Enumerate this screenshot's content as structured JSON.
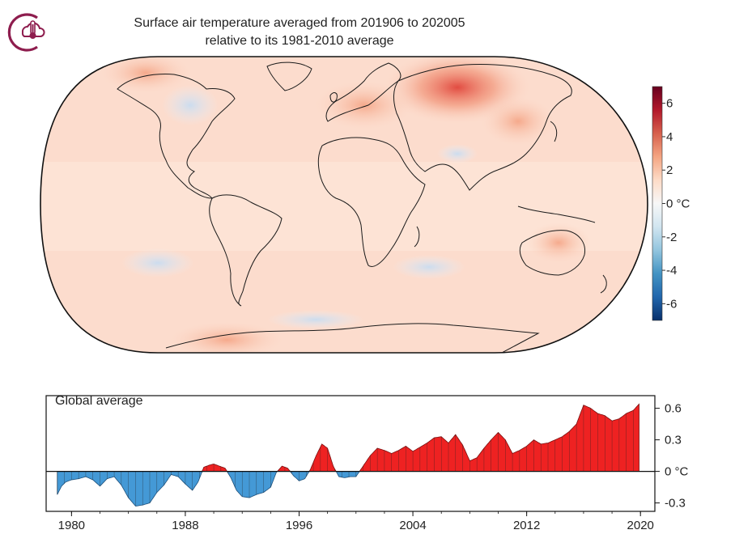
{
  "logo": {
    "icon": "thermometer-cloud-icon",
    "color": "#8e1d4e"
  },
  "title": {
    "line1": "Surface air temperature averaged from 201906 to 202005",
    "line2": "relative to its 1981-2010 average"
  },
  "colorbar": {
    "ticks": [
      "6",
      "4",
      "2",
      "0",
      "-2",
      "-4",
      "-6"
    ],
    "unit": "°C",
    "colors": [
      "#08306b",
      "#2166ac",
      "#4393c3",
      "#92c5de",
      "#d1e5f0",
      "#f7f7f7",
      "#fddbc7",
      "#f4a582",
      "#d6604d",
      "#b2182b",
      "#67001f"
    ]
  },
  "chart_data": [
    {
      "type": "heatmap",
      "description": "Global map of surface air temperature anomaly (°C), Robinson-style projection",
      "range": [
        -7,
        7
      ],
      "unit": "°C",
      "features": [
        {
          "region": "Northern Siberia",
          "anomaly": 5
        },
        {
          "region": "Northern Europe / Scandinavia",
          "anomaly": 2
        },
        {
          "region": "Alaska",
          "anomaly": 2.5
        },
        {
          "region": "Hudson Bay / Northern Canada",
          "anomaly": -1.5
        },
        {
          "region": "Antarctic Peninsula",
          "anomaly": 2
        },
        {
          "region": "Southern Ocean",
          "anomaly": -0.8
        }
      ]
    },
    {
      "type": "area",
      "title": "Global average",
      "x_ticks": [
        "1980",
        "1988",
        "1996",
        "2004",
        "2012",
        "2020"
      ],
      "y_ticks": [
        "0.6",
        "0.3",
        "0 °C",
        "-0.3"
      ],
      "xlim": [
        1978.5,
        2020.5
      ],
      "ylim": [
        -0.38,
        0.72
      ],
      "x": [
        1979.0,
        1979.3,
        1979.6,
        1980.0,
        1980.5,
        1981.0,
        1981.5,
        1982.0,
        1982.5,
        1983.0,
        1983.5,
        1984.0,
        1984.5,
        1985.0,
        1985.5,
        1986.0,
        1986.5,
        1987.0,
        1987.5,
        1988.0,
        1988.5,
        1988.9,
        1989.3,
        1989.7,
        1990.0,
        1990.4,
        1990.8,
        1991.2,
        1991.6,
        1992.0,
        1992.5,
        1993.0,
        1993.5,
        1994.0,
        1994.4,
        1994.8,
        1995.2,
        1995.6,
        1996.0,
        1996.4,
        1996.8,
        1997.2,
        1997.6,
        1998.0,
        1998.4,
        1998.8,
        1999.2,
        1999.6,
        2000.0,
        2000.5,
        2001.0,
        2001.5,
        2002.0,
        2002.5,
        2003.0,
        2003.5,
        2004.0,
        2004.5,
        2005.0,
        2005.5,
        2006.0,
        2006.5,
        2007.0,
        2007.5,
        2008.0,
        2008.5,
        2009.0,
        2009.5,
        2010.0,
        2010.5,
        2011.0,
        2011.5,
        2012.0,
        2012.5,
        2013.0,
        2013.5,
        2014.0,
        2014.5,
        2015.0,
        2015.5,
        2016.0,
        2016.5,
        2017.0,
        2017.5,
        2018.0,
        2018.5,
        2019.0,
        2019.5,
        2019.9
      ],
      "y": [
        -0.22,
        -0.14,
        -0.1,
        -0.08,
        -0.07,
        -0.05,
        -0.08,
        -0.14,
        -0.07,
        -0.05,
        -0.13,
        -0.25,
        -0.33,
        -0.32,
        -0.3,
        -0.2,
        -0.13,
        -0.03,
        -0.05,
        -0.12,
        -0.18,
        -0.1,
        0.04,
        0.06,
        0.07,
        0.05,
        0.03,
        -0.06,
        -0.18,
        -0.24,
        -0.25,
        -0.22,
        -0.2,
        -0.15,
        -0.01,
        0.05,
        0.03,
        -0.04,
        -0.09,
        -0.07,
        0.02,
        0.15,
        0.26,
        0.22,
        0.05,
        -0.05,
        -0.06,
        -0.05,
        -0.05,
        0.05,
        0.15,
        0.22,
        0.2,
        0.17,
        0.2,
        0.24,
        0.19,
        0.23,
        0.27,
        0.32,
        0.33,
        0.27,
        0.35,
        0.25,
        0.1,
        0.13,
        0.22,
        0.3,
        0.37,
        0.3,
        0.17,
        0.2,
        0.24,
        0.3,
        0.26,
        0.27,
        0.3,
        0.33,
        0.38,
        0.45,
        0.63,
        0.6,
        0.55,
        0.53,
        0.48,
        0.5,
        0.55,
        0.58,
        0.64
      ],
      "colors": {
        "positive": "#ee2222",
        "negative": "#4499d6"
      }
    }
  ]
}
